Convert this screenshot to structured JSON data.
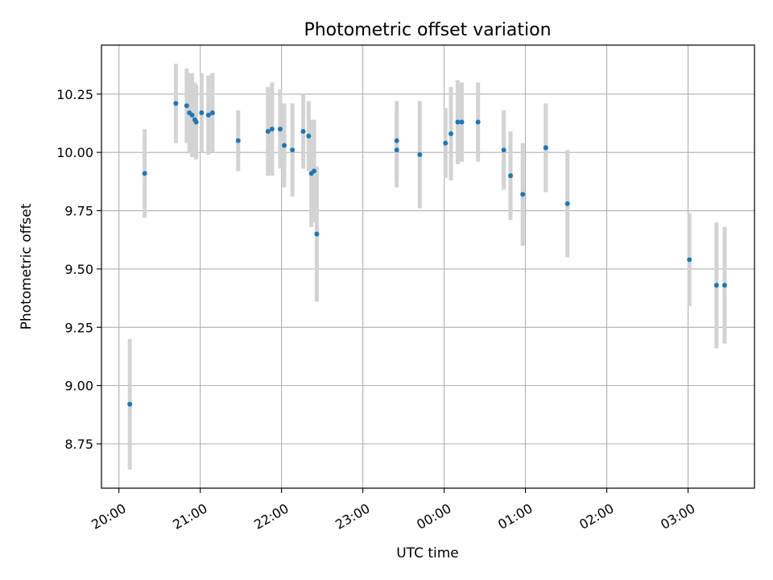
{
  "chart_data": {
    "type": "scatter",
    "title": "Photometric offset variation",
    "xlabel": "UTC time",
    "ylabel": "Photometric offset",
    "x_tick_labels": [
      "20:00",
      "21:00",
      "22:00",
      "23:00",
      "00:00",
      "01:00",
      "02:00",
      "03:00"
    ],
    "x_ticks_hours": [
      20,
      21,
      22,
      23,
      24,
      25,
      26,
      27
    ],
    "xlim_hours": [
      19.785,
      27.817
    ],
    "y_ticks": [
      8.75,
      9.0,
      9.25,
      9.5,
      9.75,
      10.0,
      10.25
    ],
    "y_tick_labels": [
      "8.75",
      "9.00",
      "9.25",
      "9.50",
      "9.75",
      "10.00",
      "10.25"
    ],
    "ylim": [
      8.56,
      10.46
    ],
    "grid": true,
    "colors": {
      "marker": "#1f77b4",
      "errorbar": "#d3d3d3",
      "grid": "#b0b0b0"
    },
    "points": [
      {
        "t": "20:08",
        "y": 8.92,
        "err": 0.28
      },
      {
        "t": "20:19",
        "y": 9.91,
        "err": 0.19
      },
      {
        "t": "20:42",
        "y": 10.21,
        "err": 0.17
      },
      {
        "t": "20:50",
        "y": 10.2,
        "err": 0.16
      },
      {
        "t": "20:52",
        "y": 10.17,
        "err": 0.17
      },
      {
        "t": "20:54",
        "y": 10.16,
        "err": 0.18
      },
      {
        "t": "20:56",
        "y": 10.14,
        "err": 0.16
      },
      {
        "t": "20:57",
        "y": 10.13,
        "err": 0.16
      },
      {
        "t": "21:01",
        "y": 10.17,
        "err": 0.17
      },
      {
        "t": "21:06",
        "y": 10.16,
        "err": 0.17
      },
      {
        "t": "21:09",
        "y": 10.17,
        "err": 0.17
      },
      {
        "t": "21:28",
        "y": 10.05,
        "err": 0.13
      },
      {
        "t": "21:50",
        "y": 10.09,
        "err": 0.19
      },
      {
        "t": "21:53",
        "y": 10.1,
        "err": 0.2
      },
      {
        "t": "21:59",
        "y": 10.1,
        "err": 0.17
      },
      {
        "t": "22:02",
        "y": 10.03,
        "err": 0.18
      },
      {
        "t": "22:08",
        "y": 10.01,
        "err": 0.2
      },
      {
        "t": "22:16",
        "y": 10.09,
        "err": 0.16
      },
      {
        "t": "22:20",
        "y": 10.07,
        "err": 0.15
      },
      {
        "t": "22:22",
        "y": 9.91,
        "err": 0.23
      },
      {
        "t": "22:24",
        "y": 9.92,
        "err": 0.22
      },
      {
        "t": "22:26",
        "y": 9.65,
        "err": 0.29
      },
      {
        "t": "23:25",
        "y": 10.05,
        "err": 0.17
      },
      {
        "t": "23:25",
        "y": 10.01,
        "err": 0.16
      },
      {
        "t": "23:42",
        "y": 9.99,
        "err": 0.23
      },
      {
        "t": "00:01",
        "y": 10.04,
        "err": 0.15
      },
      {
        "t": "00:05",
        "y": 10.08,
        "err": 0.2
      },
      {
        "t": "00:10",
        "y": 10.13,
        "err": 0.18
      },
      {
        "t": "00:13",
        "y": 10.13,
        "err": 0.17
      },
      {
        "t": "00:25",
        "y": 10.13,
        "err": 0.17
      },
      {
        "t": "00:44",
        "y": 10.01,
        "err": 0.17
      },
      {
        "t": "00:49",
        "y": 9.9,
        "err": 0.19
      },
      {
        "t": "00:58",
        "y": 9.82,
        "err": 0.22
      },
      {
        "t": "01:15",
        "y": 10.02,
        "err": 0.19
      },
      {
        "t": "01:15",
        "y": 10.02,
        "err": 0.19
      },
      {
        "t": "01:31",
        "y": 9.78,
        "err": 0.23
      },
      {
        "t": "03:01",
        "y": 9.54,
        "err": 0.2
      },
      {
        "t": "03:21",
        "y": 9.43,
        "err": 0.27
      },
      {
        "t": "03:27",
        "y": 9.43,
        "err": 0.25
      }
    ]
  }
}
